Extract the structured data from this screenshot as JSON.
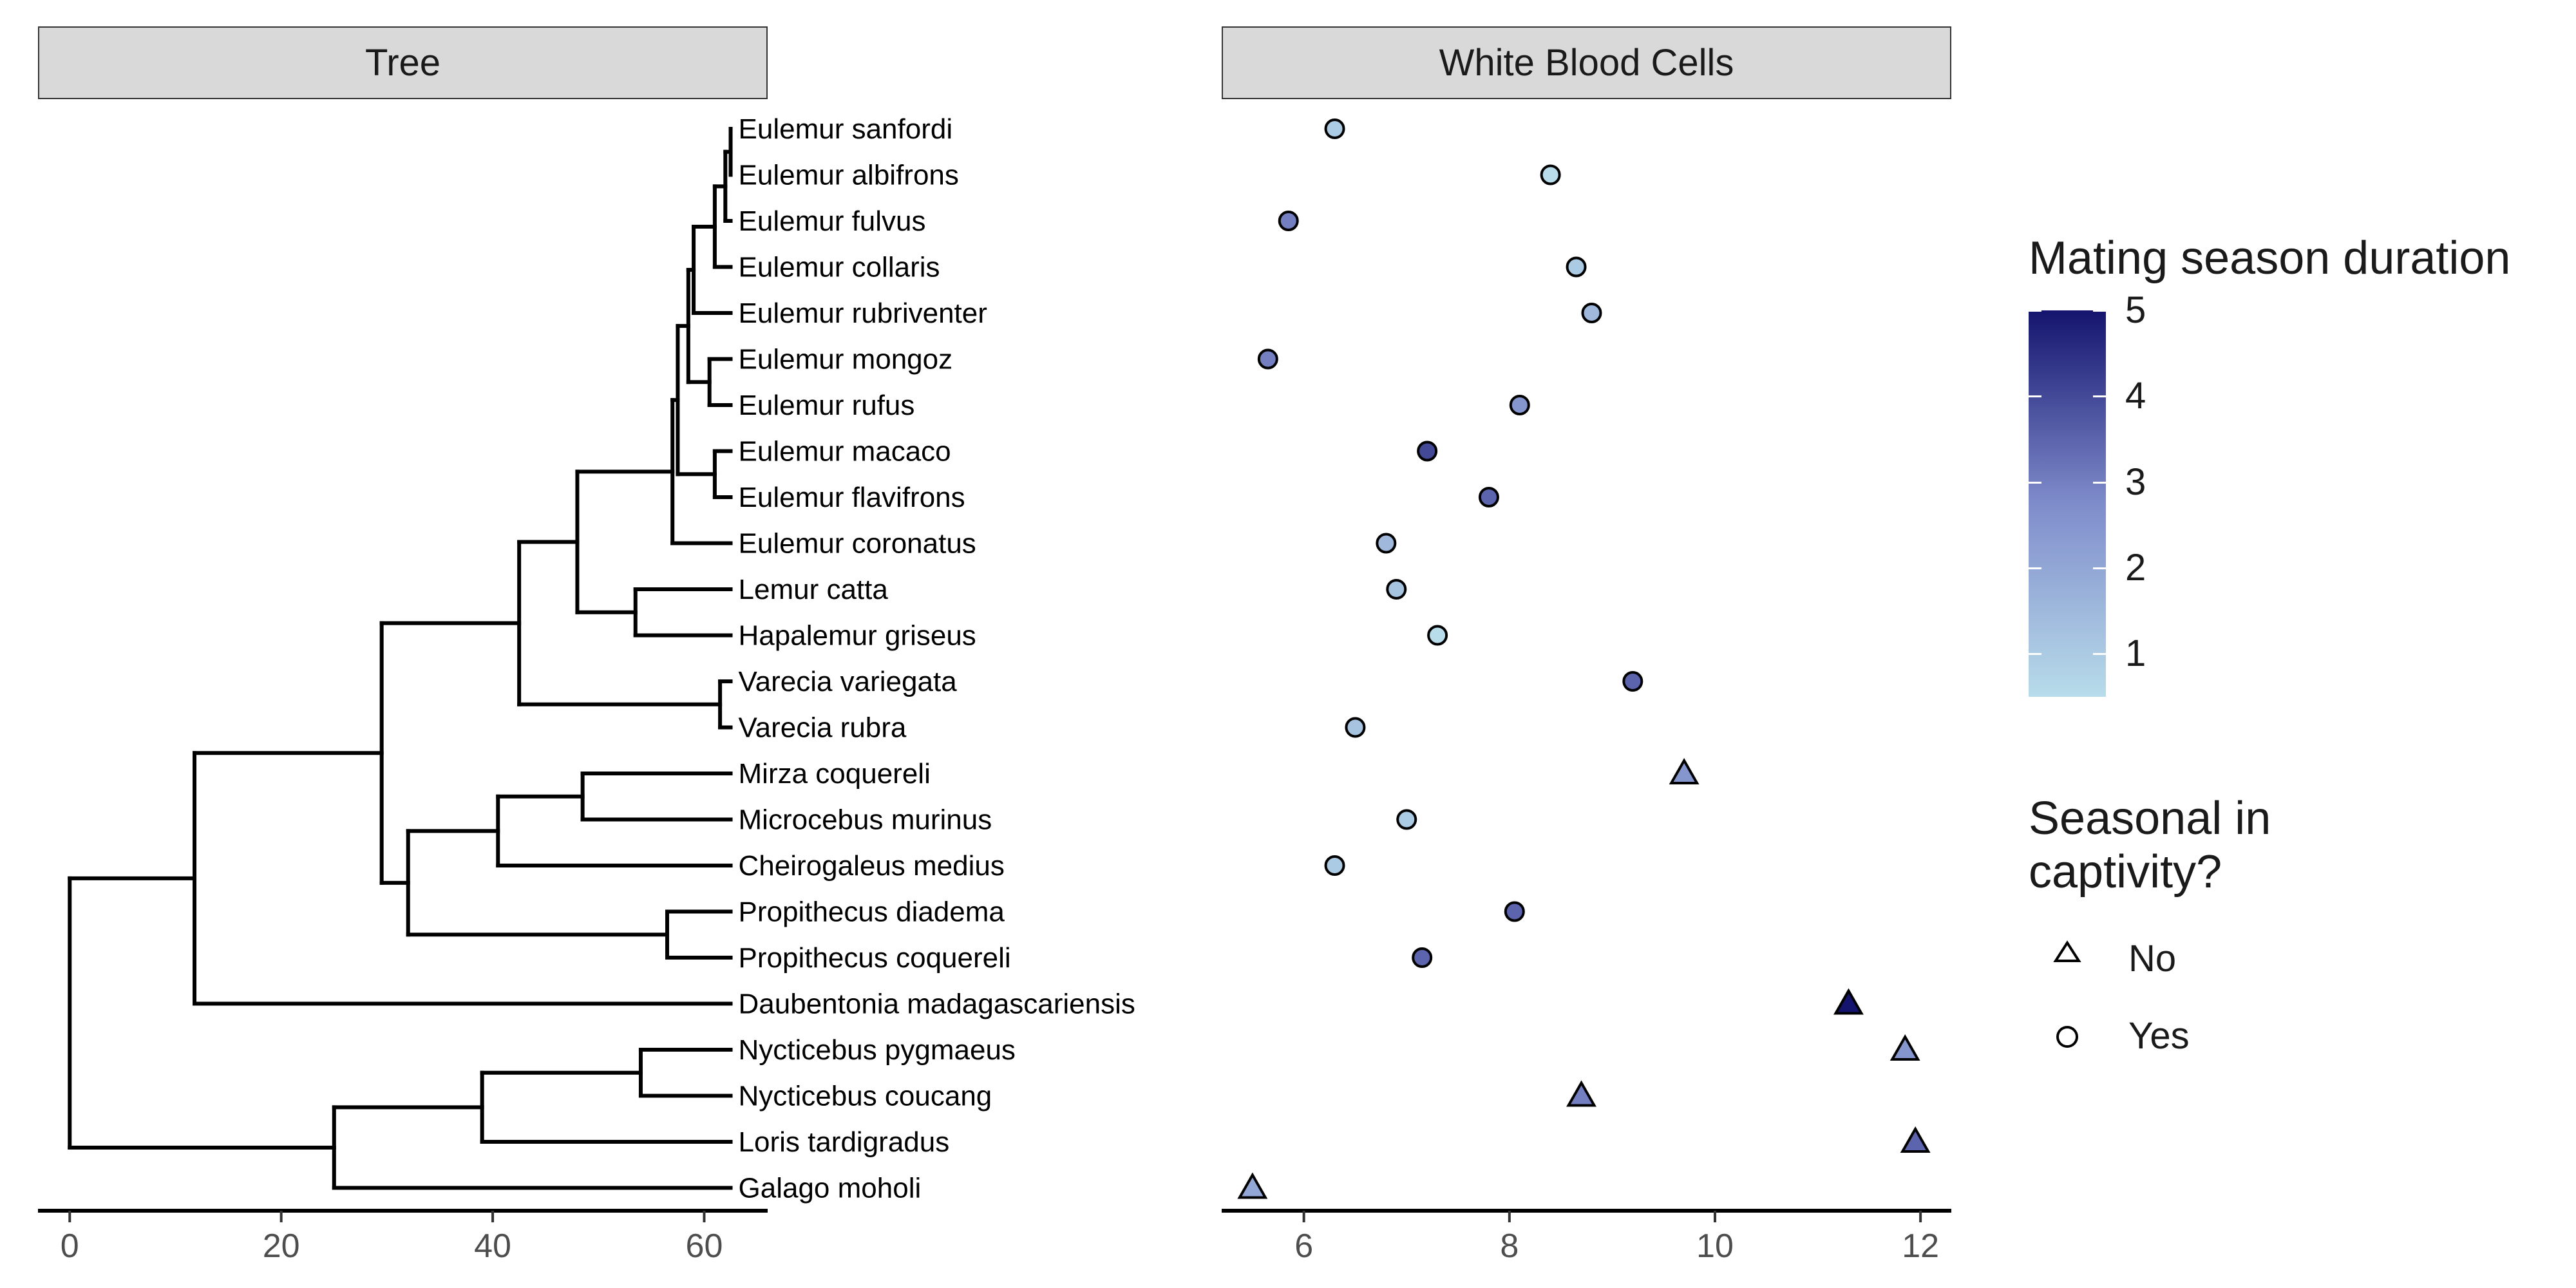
{
  "panels": {
    "tree_title": "Tree",
    "wbc_title": "White Blood Cells"
  },
  "chart_data": [
    {
      "type": "tree",
      "title": "Tree",
      "taxa": [
        "Eulemur sanfordi",
        "Eulemur albifrons",
        "Eulemur fulvus",
        "Eulemur collaris",
        "Eulemur rubriventer",
        "Eulemur mongoz",
        "Eulemur rufus",
        "Eulemur macaco",
        "Eulemur flavifrons",
        "Eulemur coronatus",
        "Lemur catta",
        "Hapalemur griseus",
        "Varecia variegata",
        "Varecia rubra",
        "Mirza coquereli",
        "Microcebus murinus",
        "Cheirogaleus medius",
        "Propithecus diadema",
        "Propithecus coquereli",
        "Daubentonia madagascariensis",
        "Nycticebus pygmaeus",
        "Nycticebus coucang",
        "Loris tardigradus",
        "Galago moholi"
      ],
      "tip_depth": 62.5,
      "nodes": [
        {
          "id": "n1",
          "height": 62.5,
          "children": [
            "Eulemur sanfordi",
            "Eulemur albifrons"
          ]
        },
        {
          "id": "n2",
          "height": 62.0,
          "children": [
            "n1",
            "Eulemur fulvus"
          ]
        },
        {
          "id": "n3",
          "height": 61.0,
          "children": [
            "n2",
            "Eulemur collaris"
          ]
        },
        {
          "id": "n4",
          "height": 59.0,
          "children": [
            "n3",
            "Eulemur rubriventer"
          ]
        },
        {
          "id": "n5",
          "height": 60.5,
          "children": [
            "Eulemur mongoz",
            "Eulemur rufus"
          ]
        },
        {
          "id": "n6",
          "height": 58.5,
          "children": [
            "n4",
            "n5"
          ]
        },
        {
          "id": "n7",
          "height": 61.0,
          "children": [
            "Eulemur macaco",
            "Eulemur flavifrons"
          ]
        },
        {
          "id": "n8",
          "height": 57.5,
          "children": [
            "n6",
            "n7"
          ]
        },
        {
          "id": "n9",
          "height": 57.0,
          "children": [
            "n8",
            "Eulemur coronatus"
          ]
        },
        {
          "id": "n10",
          "height": 53.5,
          "children": [
            "Lemur catta",
            "Hapalemur griseus"
          ]
        },
        {
          "id": "n11",
          "height": 48.0,
          "children": [
            "n9",
            "n10"
          ]
        },
        {
          "id": "n12",
          "height": 61.5,
          "children": [
            "Varecia variegata",
            "Varecia rubra"
          ]
        },
        {
          "id": "n13",
          "height": 42.5,
          "children": [
            "n11",
            "n12"
          ]
        },
        {
          "id": "n14",
          "height": 48.5,
          "children": [
            "Mirza coquereli",
            "Microcebus murinus"
          ]
        },
        {
          "id": "n15",
          "height": 40.5,
          "children": [
            "n14",
            "Cheirogaleus medius"
          ]
        },
        {
          "id": "n16",
          "height": 56.5,
          "children": [
            "Propithecus diadema",
            "Propithecus coquereli"
          ]
        },
        {
          "id": "n17",
          "height": 32.0,
          "children": [
            "n15",
            "n16"
          ]
        },
        {
          "id": "n18",
          "height": 29.5,
          "children": [
            "n13",
            "n17"
          ]
        },
        {
          "id": "n19",
          "height": 11.8,
          "children": [
            "n18",
            "Daubentonia madagascariensis"
          ]
        },
        {
          "id": "n20",
          "height": 54.0,
          "children": [
            "Nycticebus pygmaeus",
            "Nycticebus coucang"
          ]
        },
        {
          "id": "n21",
          "height": 39.0,
          "children": [
            "n20",
            "Loris tardigradus"
          ]
        },
        {
          "id": "n22",
          "height": 25.0,
          "children": [
            "n21",
            "Galago moholi"
          ]
        },
        {
          "id": "root",
          "height": 0,
          "children": [
            "n19",
            "n22"
          ]
        }
      ],
      "xlim": [
        -3,
        66
      ],
      "xticks": [
        0,
        20,
        40,
        60
      ]
    },
    {
      "type": "scatter",
      "title": "White Blood Cells",
      "xlim": [
        5.2,
        12.3
      ],
      "xticks": [
        6,
        8,
        10,
        12
      ],
      "points": [
        {
          "species": "Eulemur sanfordi",
          "value": 6.3,
          "mating_season": 1.0,
          "seasonal": "Yes"
        },
        {
          "species": "Eulemur albifrons",
          "value": 8.4,
          "mating_season": 0.5,
          "seasonal": "Yes"
        },
        {
          "species": "Eulemur fulvus",
          "value": 5.85,
          "mating_season": 3.0,
          "seasonal": "Yes"
        },
        {
          "species": "Eulemur collaris",
          "value": 8.65,
          "mating_season": 1.0,
          "seasonal": "Yes"
        },
        {
          "species": "Eulemur rubriventer",
          "value": 8.8,
          "mating_season": 1.5,
          "seasonal": "Yes"
        },
        {
          "species": "Eulemur mongoz",
          "value": 5.65,
          "mating_season": 3.0,
          "seasonal": "Yes"
        },
        {
          "species": "Eulemur rufus",
          "value": 8.1,
          "mating_season": 2.5,
          "seasonal": "Yes"
        },
        {
          "species": "Eulemur macaco",
          "value": 7.2,
          "mating_season": 4.0,
          "seasonal": "Yes"
        },
        {
          "species": "Eulemur flavifrons",
          "value": 7.8,
          "mating_season": 3.5,
          "seasonal": "Yes"
        },
        {
          "species": "Eulemur coronatus",
          "value": 6.8,
          "mating_season": 1.5,
          "seasonal": "Yes"
        },
        {
          "species": "Lemur catta",
          "value": 6.9,
          "mating_season": 1.2,
          "seasonal": "Yes"
        },
        {
          "species": "Hapalemur griseus",
          "value": 7.3,
          "mating_season": 0.5,
          "seasonal": "Yes"
        },
        {
          "species": "Varecia variegata",
          "value": 9.2,
          "mating_season": 3.5,
          "seasonal": "Yes"
        },
        {
          "species": "Varecia rubra",
          "value": 6.5,
          "mating_season": 1.2,
          "seasonal": "Yes"
        },
        {
          "species": "Mirza coquereli",
          "value": 9.7,
          "mating_season": 2.5,
          "seasonal": "No"
        },
        {
          "species": "Microcebus murinus",
          "value": 7.0,
          "mating_season": 1.0,
          "seasonal": "Yes"
        },
        {
          "species": "Cheirogaleus medius",
          "value": 6.3,
          "mating_season": 1.0,
          "seasonal": "Yes"
        },
        {
          "species": "Propithecus diadema",
          "value": 8.05,
          "mating_season": 3.5,
          "seasonal": "Yes"
        },
        {
          "species": "Propithecus coquereli",
          "value": 7.15,
          "mating_season": 3.5,
          "seasonal": "Yes"
        },
        {
          "species": "Daubentonia madagascariensis",
          "value": 11.3,
          "mating_season": 5.0,
          "seasonal": "No"
        },
        {
          "species": "Nycticebus pygmaeus",
          "value": 11.85,
          "mating_season": 2.5,
          "seasonal": "No"
        },
        {
          "species": "Nycticebus coucang",
          "value": 8.7,
          "mating_season": 3.0,
          "seasonal": "No"
        },
        {
          "species": "Loris tardigradus",
          "value": 11.95,
          "mating_season": 3.5,
          "seasonal": "No"
        },
        {
          "species": "Galago moholi",
          "value": 5.5,
          "mating_season": 2.0,
          "seasonal": "No"
        }
      ]
    }
  ],
  "legend": {
    "color_title": "Mating season duration",
    "color_ticks": [
      "1",
      "2",
      "3",
      "4",
      "5"
    ],
    "color_range": [
      0.5,
      5.0
    ],
    "color_low": "#b8dcea",
    "color_high": "#14146e",
    "shape_title": "Seasonal in\n captivity?",
    "shape_no": "No",
    "shape_yes": "Yes"
  }
}
